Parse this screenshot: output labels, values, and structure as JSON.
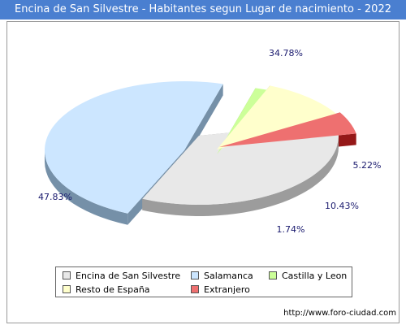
{
  "title": "Encina de San Silvestre - Habitantes segun Lugar de nacimiento - 2022",
  "footer": "http://www.foro-ciudad.com",
  "chart_data": {
    "type": "pie",
    "title": "Encina de San Silvestre - Habitantes segun Lugar de nacimiento - 2022",
    "series": [
      {
        "name": "Encina de San Silvestre",
        "value": 34.78,
        "label": "34.78%",
        "color": "#e8e8e8",
        "side": "#9c9c9c"
      },
      {
        "name": "Salamanca",
        "value": 47.83,
        "label": "47.83%",
        "color": "#cce6ff",
        "side": "#7590a8"
      },
      {
        "name": "Castilla y Leon",
        "value": 1.74,
        "label": "1.74%",
        "color": "#ccff99",
        "side": "#6aa62e"
      },
      {
        "name": "Resto de España",
        "value": 10.43,
        "label": "10.43%",
        "color": "#ffffcc",
        "side": "#a8a872"
      },
      {
        "name": "Extranjero",
        "value": 5.22,
        "label": "5.22%",
        "color": "#ee7070",
        "side": "#951818"
      }
    ],
    "legend_position": "bottom"
  }
}
